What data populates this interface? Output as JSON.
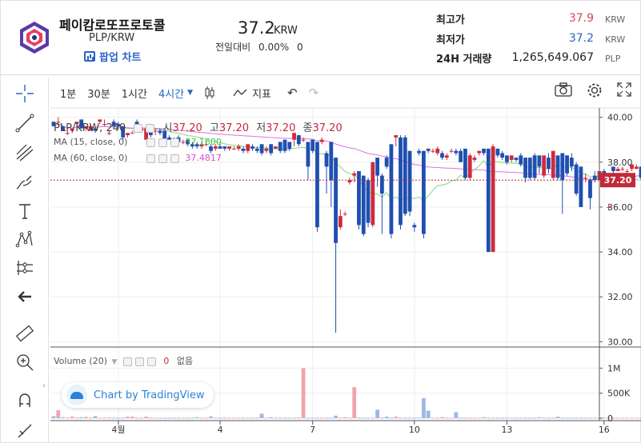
{
  "header": {
    "coin_name": "페이캄로또프로토콜",
    "pair": "PLP/KRW",
    "popup_label": "팝업 차트",
    "price": "37.2",
    "price_unit": "KRW",
    "change_label": "전일대비",
    "change_pct": "0.00%",
    "change_abs": "0",
    "stats": [
      {
        "label": "최고가",
        "value": "37.9",
        "unit": "KRW",
        "color": "#d24a5a"
      },
      {
        "label": "최저가",
        "value": "37.2",
        "unit": "KRW",
        "color": "#2a64c6"
      },
      {
        "label": "24H 거래량",
        "value": "1,265,649.067",
        "unit": "PLP",
        "color": "#222222"
      }
    ]
  },
  "toolbar": {
    "intervals": [
      "1분",
      "30분",
      "1시간",
      "4시간"
    ],
    "indicators_label": "지표"
  },
  "legend": {
    "symbol": "PLP/KRW, 240",
    "o_label": "시",
    "o": "37.20",
    "h_label": "고",
    "h": "37.20",
    "l_label": "저",
    "l": "37.20",
    "c_label": "종",
    "c": "37.20",
    "ma15_label": "MA (15, close, 0)",
    "ma15_value": "37.1600",
    "ma60_label": "MA (60, close, 0)",
    "ma60_value": "37.4817",
    "volume_label": "Volume (20)",
    "volume_value": "0",
    "volume_na": "없음"
  },
  "badge": {
    "label": "Chart by TradingView"
  },
  "colors": {
    "up": "#d02a3a",
    "down": "#1f4fb0",
    "vol_up": "#f0a4ac",
    "vol_down": "#9db7e6",
    "ma15": "#7ed87e",
    "ma60": "#e070e0",
    "last_price": "#c22a3a"
  },
  "chart_data": {
    "type": "candlestick",
    "ylim": [
      29.8,
      40.2
    ],
    "y_ticks": [
      30,
      32,
      34,
      36,
      38,
      40
    ],
    "y_tick_labels": [
      "30.00",
      "32.00",
      "34.00",
      "36.00",
      "38.00",
      "40.00"
    ],
    "x_tick_labels": [
      {
        "label": "4월",
        "i": 14
      },
      {
        "label": "4",
        "i": 36
      },
      {
        "label": "7",
        "i": 56
      },
      {
        "label": "10",
        "i": 78
      },
      {
        "label": "13",
        "i": 98
      },
      {
        "label": "16",
        "i": 119
      }
    ],
    "last_price": "37.20",
    "last_value": 37.2,
    "volume_ticks": [
      "1M",
      "500K",
      "0"
    ],
    "volume_tick_values": [
      1000000,
      500000,
      0
    ],
    "candles": [
      [
        39.8,
        39.6,
        39.8,
        39.6
      ],
      [
        39.8,
        39.8,
        40.0,
        39.7
      ],
      [
        39.6,
        39.4,
        39.6,
        39.4
      ],
      [
        39.3,
        39.3,
        39.4,
        39.2
      ],
      [
        39.4,
        39.5,
        39.5,
        39.3
      ],
      [
        39.7,
        39.8,
        39.8,
        39.7
      ],
      [
        39.9,
        39.5,
        39.9,
        39.5
      ],
      [
        39.5,
        39.6,
        39.6,
        39.4
      ],
      [
        39.4,
        39.6,
        39.7,
        39.4
      ],
      [
        39.5,
        39.4,
        39.6,
        39.3
      ],
      [
        39.8,
        39.9,
        39.9,
        39.7
      ],
      [
        39.7,
        39.7,
        39.9,
        39.6
      ],
      [
        39.3,
        39.3,
        39.4,
        39.2
      ],
      [
        39.8,
        39.6,
        39.9,
        39.6
      ],
      [
        39.7,
        39.6,
        39.8,
        39.5
      ],
      [
        39.6,
        39.1,
        39.6,
        39.0
      ],
      [
        39.2,
        39.3,
        39.3,
        39.1
      ],
      [
        39.3,
        39.3,
        39.4,
        39.3
      ],
      [
        39.8,
        39.7,
        39.9,
        39.7
      ],
      [
        39.4,
        39.5,
        39.6,
        39.3
      ],
      [
        39.0,
        39.5,
        39.5,
        39.0
      ],
      [
        39.4,
        39.2,
        39.5,
        39.1
      ],
      [
        39.4,
        39.4,
        39.5,
        39.2
      ],
      [
        39.4,
        39.3,
        39.5,
        39.2
      ],
      [
        39.4,
        39.0,
        39.4,
        38.9
      ],
      [
        39.1,
        39.0,
        39.2,
        39.0
      ],
      [
        39.0,
        38.9,
        39.1,
        38.8
      ],
      [
        39.1,
        38.9,
        39.2,
        38.8
      ],
      [
        38.9,
        38.9,
        39.0,
        38.8
      ],
      [
        39.0,
        38.8,
        39.0,
        38.7
      ],
      [
        38.8,
        38.7,
        38.9,
        38.6
      ],
      [
        38.8,
        38.7,
        38.9,
        38.6
      ],
      [
        38.7,
        38.8,
        38.9,
        38.6
      ],
      [
        38.8,
        38.8,
        38.9,
        38.7
      ],
      [
        38.7,
        38.5,
        38.8,
        38.4
      ],
      [
        38.6,
        38.7,
        38.8,
        38.5
      ],
      [
        38.7,
        38.6,
        38.8,
        38.6
      ],
      [
        38.7,
        38.6,
        38.7,
        38.5
      ],
      [
        38.6,
        38.7,
        38.7,
        38.5
      ],
      [
        38.6,
        38.6,
        38.7,
        38.6
      ],
      [
        38.6,
        38.7,
        38.8,
        38.5
      ],
      [
        38.6,
        38.5,
        38.7,
        38.4
      ],
      [
        38.5,
        38.8,
        38.8,
        38.4
      ],
      [
        38.7,
        38.6,
        38.8,
        38.5
      ],
      [
        38.6,
        38.5,
        38.7,
        38.4
      ],
      [
        38.8,
        38.4,
        38.8,
        38.3
      ],
      [
        38.5,
        38.6,
        38.7,
        38.4
      ],
      [
        38.8,
        38.4,
        38.8,
        38.3
      ],
      [
        38.6,
        38.7,
        38.7,
        38.6
      ],
      [
        38.9,
        38.5,
        38.9,
        38.4
      ],
      [
        39.0,
        38.5,
        39.0,
        38.4
      ],
      [
        38.9,
        38.6,
        38.9,
        38.5
      ],
      [
        39.0,
        39.3,
        39.3,
        38.7
      ],
      [
        39.2,
        38.8,
        39.2,
        38.7
      ],
      [
        39.0,
        39.0,
        39.1,
        38.9
      ],
      [
        38.9,
        37.8,
        38.9,
        37.2
      ],
      [
        39.0,
        38.5,
        39.0,
        38.4
      ],
      [
        38.9,
        35.1,
        38.9,
        34.9
      ],
      [
        38.9,
        39.0,
        39.1,
        38.8
      ],
      [
        38.4,
        37.8,
        38.5,
        36.6
      ],
      [
        38.9,
        37.2,
        38.9,
        36.0
      ],
      [
        38.2,
        34.4,
        38.2,
        30.4
      ],
      [
        35.1,
        35.6,
        35.9,
        35.0
      ],
      [
        35.7,
        35.7,
        35.8,
        35.6
      ],
      [
        37.1,
        37.2,
        37.3,
        37.0
      ],
      [
        37.4,
        37.5,
        37.6,
        37.1
      ],
      [
        37.6,
        35.2,
        37.6,
        35.0
      ],
      [
        37.4,
        34.8,
        37.4,
        34.7
      ],
      [
        37.2,
        35.3,
        37.3,
        35.1
      ],
      [
        35.2,
        38.0,
        38.0,
        35.1
      ],
      [
        38.2,
        37.4,
        38.2,
        36.9
      ],
      [
        37.4,
        36.6,
        37.5,
        34.8
      ],
      [
        38.2,
        37.8,
        38.3,
        37.7
      ],
      [
        38.8,
        34.8,
        38.8,
        34.6
      ],
      [
        39.1,
        39.2,
        39.2,
        38.7
      ],
      [
        39.1,
        35.2,
        39.2,
        35.0
      ],
      [
        39.1,
        35.7,
        39.2,
        35.6
      ],
      [
        38.5,
        35.8,
        38.5,
        35.6
      ],
      [
        35.2,
        35.1,
        35.3,
        34.9
      ],
      [
        38.5,
        38.4,
        38.6,
        38.3
      ],
      [
        38.5,
        34.8,
        38.5,
        34.6
      ],
      [
        38.6,
        38.5,
        38.6,
        38.4
      ],
      [
        38.5,
        38.5,
        38.6,
        38.4
      ],
      [
        38.4,
        38.6,
        38.7,
        38.3
      ],
      [
        38.4,
        38.2,
        38.5,
        38.1
      ],
      [
        38.2,
        38.3,
        38.4,
        38.1
      ],
      [
        38.5,
        38.5,
        38.6,
        38.4
      ],
      [
        38.5,
        38.4,
        38.6,
        38.3
      ],
      [
        38.5,
        38.0,
        38.6,
        38.0
      ],
      [
        38.6,
        37.3,
        38.6,
        37.2
      ],
      [
        37.3,
        38.3,
        38.4,
        37.2
      ],
      [
        38.1,
        38.2,
        38.3,
        38.0
      ],
      [
        38.4,
        38.5,
        38.5,
        38.3
      ],
      [
        38.6,
        38.4,
        38.6,
        38.3
      ],
      [
        38.6,
        34.0,
        38.6,
        34.0
      ],
      [
        34.0,
        38.7,
        38.8,
        34.0
      ],
      [
        38.6,
        38.3,
        38.6,
        38.2
      ],
      [
        38.4,
        38.2,
        38.5,
        38.1
      ],
      [
        38.3,
        38.0,
        38.3,
        37.9
      ],
      [
        38.1,
        38.3,
        38.3,
        38.0
      ],
      [
        38.2,
        38.1,
        38.2,
        38.0
      ],
      [
        38.3,
        37.9,
        38.4,
        37.8
      ],
      [
        38.2,
        37.3,
        38.2,
        37.1
      ],
      [
        38.2,
        37.3,
        38.2,
        37.2
      ],
      [
        38.3,
        37.3,
        38.4,
        37.2
      ],
      [
        38.3,
        37.8,
        38.3,
        37.5
      ],
      [
        37.4,
        38.3,
        38.3,
        37.3
      ],
      [
        38.2,
        37.7,
        38.4,
        37.5
      ],
      [
        37.3,
        38.5,
        38.5,
        37.2
      ],
      [
        38.3,
        37.3,
        38.3,
        37.2
      ],
      [
        38.4,
        37.2,
        38.4,
        35.7
      ],
      [
        38.3,
        37.5,
        38.3,
        37.4
      ],
      [
        38.2,
        37.8,
        38.4,
        37.6
      ],
      [
        37.9,
        36.6,
        38.0,
        36.5
      ],
      [
        37.8,
        36.0,
        37.8,
        36.0
      ],
      [
        37.3,
        37.3,
        37.5,
        37.1
      ],
      [
        37.2,
        36.4,
        37.3,
        35.9
      ],
      [
        37.4,
        37.2,
        37.6,
        37.1
      ],
      [
        37.2,
        37.6,
        37.6,
        37.1
      ],
      [
        37.6,
        37.2,
        37.7,
        37.1
      ],
      [
        36.0,
        36.0,
        36.1,
        35.9
      ],
      [
        37.8,
        37.6,
        37.8,
        37.5
      ],
      [
        37.6,
        37.7,
        37.8,
        37.6
      ],
      [
        37.7,
        37.7,
        37.8,
        37.6
      ],
      [
        37.6,
        37.6,
        37.7,
        37.5
      ],
      [
        37.7,
        37.9,
        37.9,
        37.6
      ],
      [
        37.7,
        37.8,
        37.9,
        37.7
      ],
      [
        37.8,
        37.3,
        37.8,
        37.2
      ],
      [
        37.2,
        37.9,
        37.9,
        37.2
      ],
      [
        37.2,
        37.8,
        37.8,
        37.2
      ]
    ],
    "volume": [
      40000,
      160000,
      20000,
      10000,
      30000,
      10000,
      20000,
      25000,
      10000,
      40000,
      10000,
      10000,
      15000,
      10000,
      10000,
      10000,
      30000,
      30000,
      10000,
      10000,
      30000,
      10000,
      10000,
      10000,
      5000,
      10000,
      10000,
      10000,
      10000,
      10000,
      10000,
      20000,
      10000,
      10000,
      35000,
      10000,
      10000,
      10000,
      10000,
      10000,
      10000,
      10000,
      10000,
      10000,
      10000,
      90000,
      10000,
      20000,
      10000,
      10000,
      10000,
      10000,
      10000,
      10000,
      1000000,
      10000,
      10000,
      10000,
      10000,
      10000,
      10000,
      50000,
      10000,
      20000,
      10000,
      620000,
      10000,
      10000,
      10000,
      10000,
      170000,
      10000,
      30000,
      10000,
      30000,
      10000,
      10000,
      10000,
      10000,
      10000,
      400000,
      150000,
      10000,
      10000,
      20000,
      10000,
      10000,
      120000,
      10000,
      10000,
      10000,
      10000,
      10000,
      20000,
      10000,
      10000,
      10000,
      10000,
      10000,
      10000,
      10000,
      10000,
      10000,
      10000,
      10000,
      20000,
      10000,
      10000,
      10000,
      30000,
      10000,
      10000,
      10000,
      10000,
      10000,
      10000,
      10000,
      10000,
      10000,
      10000,
      10000,
      10000,
      10000,
      10000,
      10000,
      10000,
      10000,
      10000,
      10000,
      10000
    ]
  }
}
